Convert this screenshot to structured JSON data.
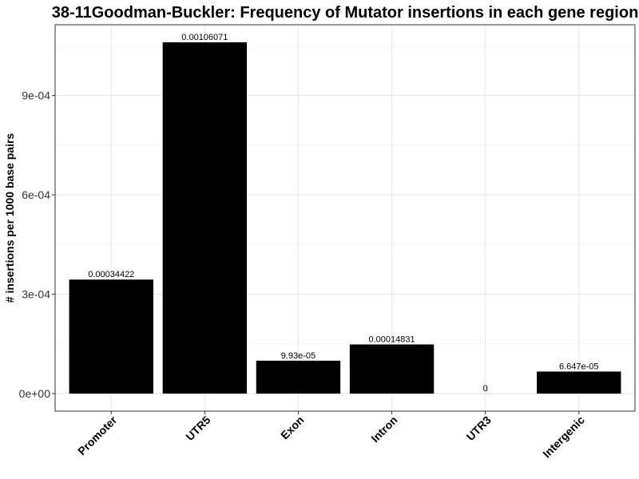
{
  "chart_data": {
    "type": "bar",
    "title": "38-11Goodman-Buckler: Frequency of Mutator insertions in each gene region",
    "xlabel": "",
    "ylabel": "# insertions per 1000 base pairs",
    "categories": [
      "Promoter",
      "UTR5",
      "Exon",
      "Intron",
      "UTR3",
      "Intergenic"
    ],
    "values": [
      0.00034422,
      0.00106071,
      9.93e-05,
      0.00014831,
      0,
      6.647e-05
    ],
    "data_labels": [
      "0.00034422",
      "0.00106071",
      "9.93e-05",
      "0.00014831",
      "0",
      "6.647e-05"
    ],
    "ylim": [
      -5.304e-05,
      0.00111375
    ],
    "yticks": [
      0,
      0.0003,
      0.0006,
      0.0009
    ],
    "ytick_labels": [
      "0e+00",
      "3e-04",
      "6e-04",
      "9e-04"
    ],
    "bar_color": "#000000",
    "grid": true,
    "legend": "none"
  }
}
